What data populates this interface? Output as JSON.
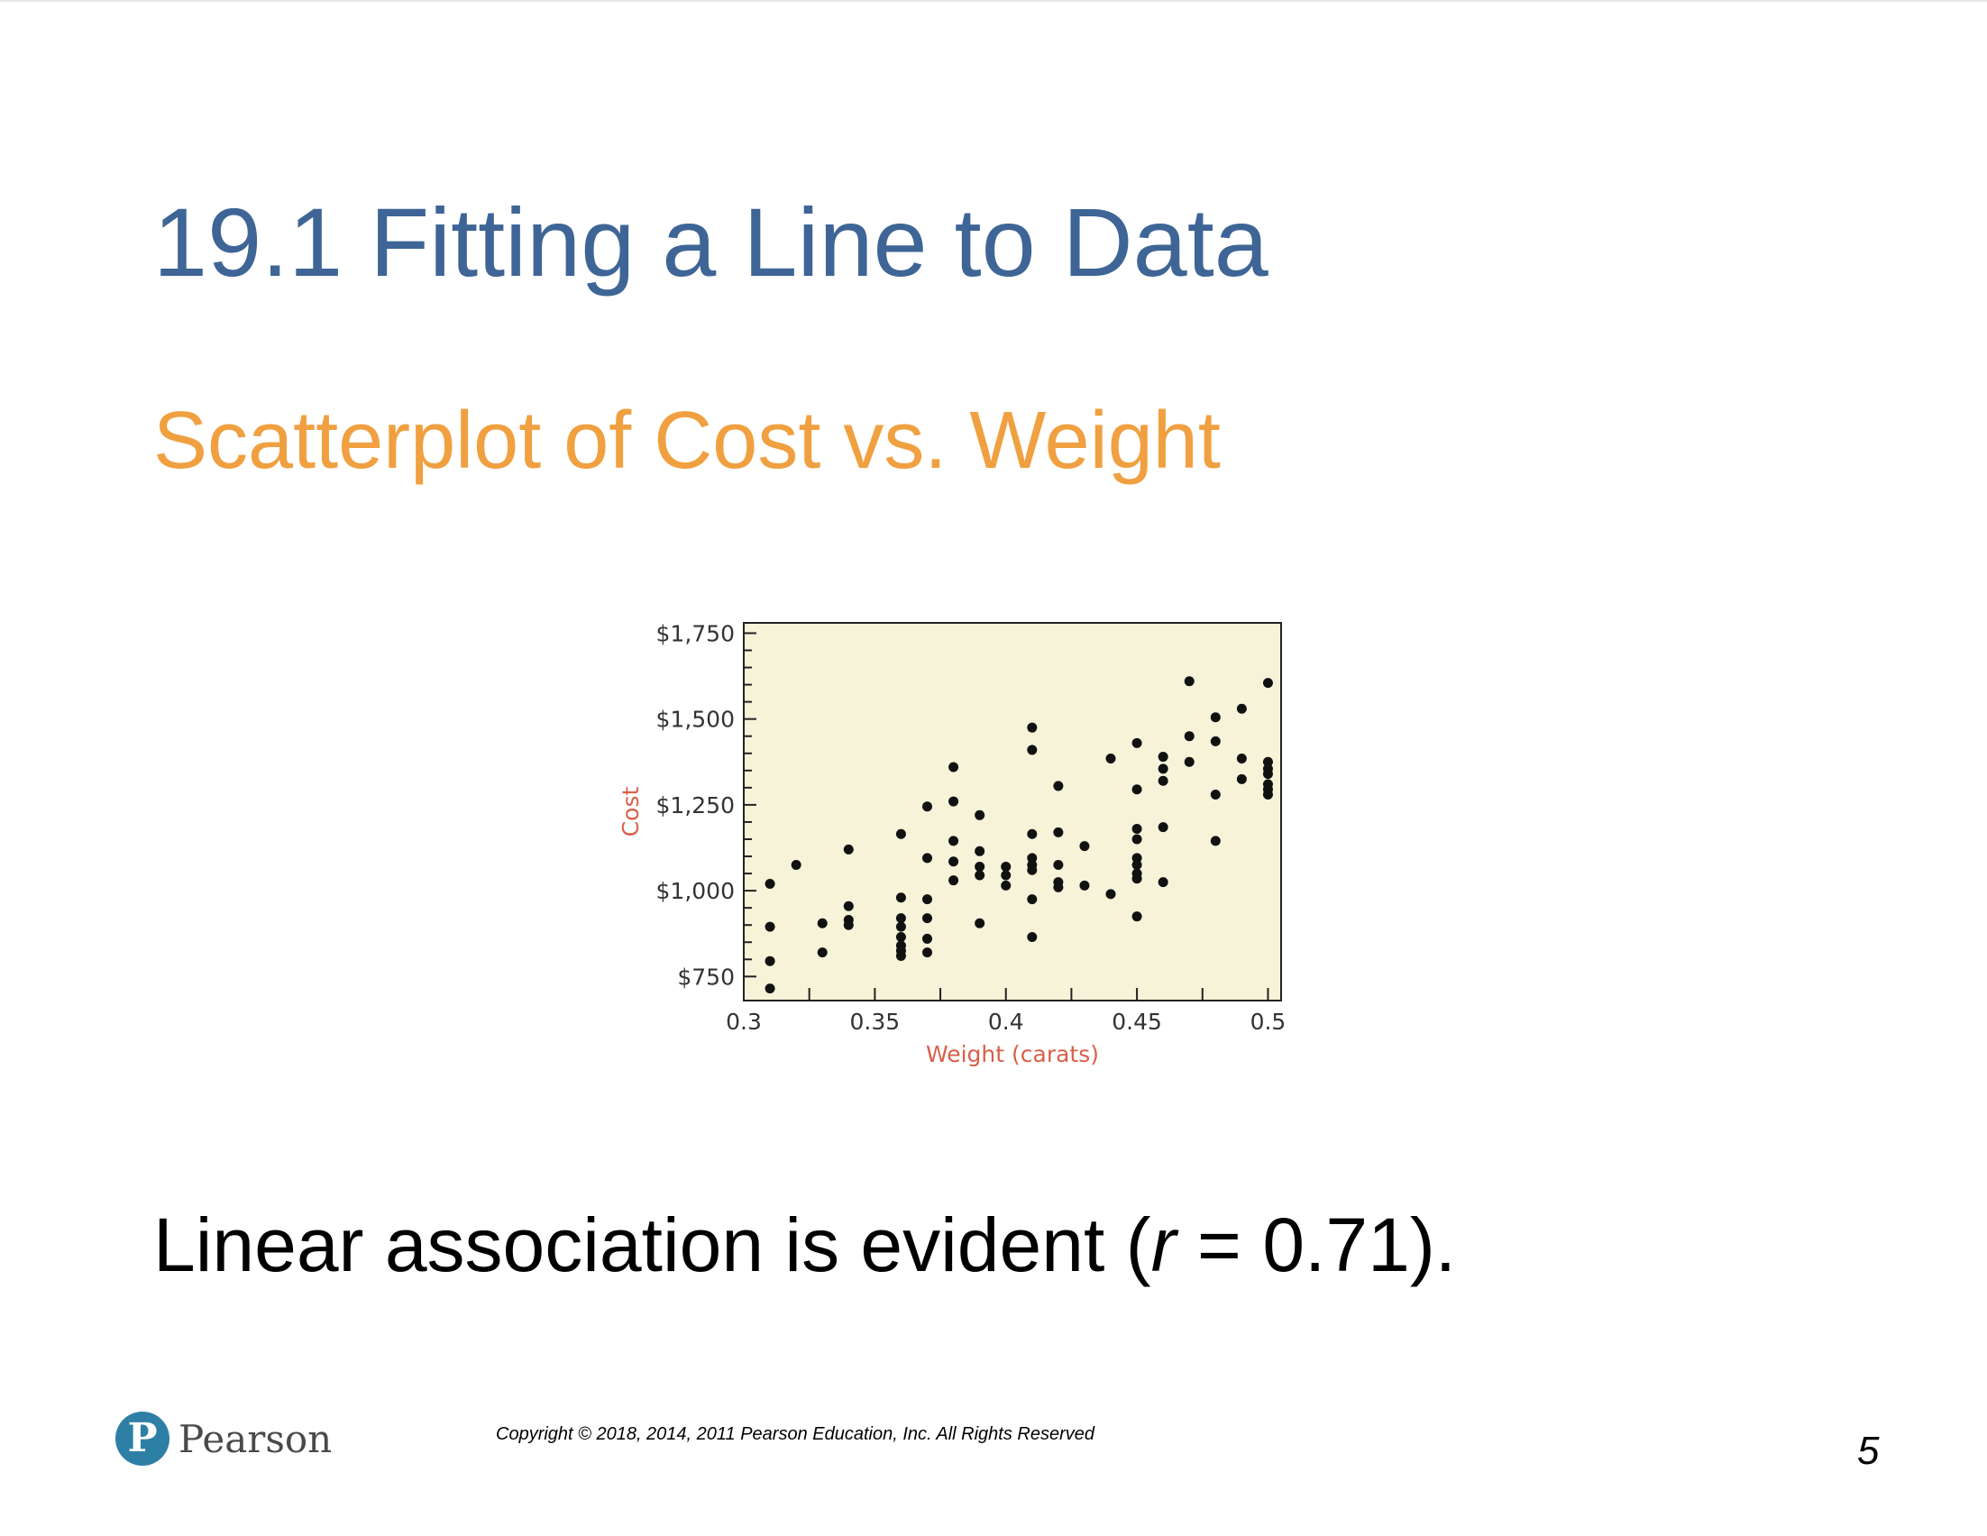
{
  "slide": {
    "title": "19.1 Fitting a Line to Data",
    "subtitle": "Scatterplot of Cost vs. Weight",
    "caption_before": "Linear association is evident (",
    "caption_var": "r",
    "caption_after": " = 0.71).",
    "copyright": "Copyright © 2018, 2014, 2011 Pearson Education, Inc. All Rights Reserved",
    "page_number": "5",
    "logo_text": "Pearson",
    "logo_letter": "P"
  },
  "colors": {
    "title": "#3e6596",
    "subtitle": "#f0a040",
    "plot_bg": "#f6f3d9",
    "axis_label": "#d9604a",
    "point": "#111111",
    "logo": "#2e7fa6"
  },
  "chart_data": {
    "type": "scatter",
    "xlabel": "Weight (carats)",
    "ylabel": "Cost",
    "xlim": [
      0.3,
      0.505
    ],
    "ylim": [
      680,
      1780
    ],
    "x_ticks": [
      0.3,
      0.35,
      0.4,
      0.45,
      0.5
    ],
    "x_tick_labels": [
      "0.3",
      "0.35",
      "0.4",
      "0.45",
      "0.5"
    ],
    "y_ticks": [
      750,
      1000,
      1250,
      1500,
      1750
    ],
    "y_tick_labels": [
      "$750",
      "$1,000",
      "$1,250",
      "$1,500",
      "$1,750"
    ],
    "grid": false,
    "points": [
      [
        0.31,
        1020
      ],
      [
        0.31,
        895
      ],
      [
        0.31,
        795
      ],
      [
        0.31,
        715
      ],
      [
        0.32,
        1075
      ],
      [
        0.33,
        905
      ],
      [
        0.33,
        820
      ],
      [
        0.34,
        1120
      ],
      [
        0.34,
        955
      ],
      [
        0.34,
        915
      ],
      [
        0.34,
        900
      ],
      [
        0.36,
        1165
      ],
      [
        0.36,
        980
      ],
      [
        0.36,
        920
      ],
      [
        0.36,
        895
      ],
      [
        0.36,
        865
      ],
      [
        0.36,
        840
      ],
      [
        0.36,
        825
      ],
      [
        0.36,
        810
      ],
      [
        0.37,
        1245
      ],
      [
        0.37,
        1095
      ],
      [
        0.37,
        975
      ],
      [
        0.37,
        920
      ],
      [
        0.37,
        860
      ],
      [
        0.37,
        820
      ],
      [
        0.38,
        1360
      ],
      [
        0.38,
        1260
      ],
      [
        0.38,
        1145
      ],
      [
        0.38,
        1085
      ],
      [
        0.38,
        1030
      ],
      [
        0.39,
        1220
      ],
      [
        0.39,
        1115
      ],
      [
        0.39,
        1070
      ],
      [
        0.39,
        1045
      ],
      [
        0.39,
        905
      ],
      [
        0.4,
        1070
      ],
      [
        0.4,
        1045
      ],
      [
        0.4,
        1015
      ],
      [
        0.41,
        1475
      ],
      [
        0.41,
        1410
      ],
      [
        0.41,
        1165
      ],
      [
        0.41,
        1095
      ],
      [
        0.41,
        1075
      ],
      [
        0.41,
        1060
      ],
      [
        0.41,
        975
      ],
      [
        0.41,
        865
      ],
      [
        0.42,
        1305
      ],
      [
        0.42,
        1170
      ],
      [
        0.42,
        1075
      ],
      [
        0.42,
        1025
      ],
      [
        0.42,
        1010
      ],
      [
        0.43,
        1130
      ],
      [
        0.43,
        1015
      ],
      [
        0.44,
        1385
      ],
      [
        0.44,
        990
      ],
      [
        0.45,
        1430
      ],
      [
        0.45,
        1295
      ],
      [
        0.45,
        1180
      ],
      [
        0.45,
        1150
      ],
      [
        0.45,
        1095
      ],
      [
        0.45,
        1075
      ],
      [
        0.45,
        1050
      ],
      [
        0.45,
        1035
      ],
      [
        0.45,
        925
      ],
      [
        0.46,
        1390
      ],
      [
        0.46,
        1355
      ],
      [
        0.46,
        1320
      ],
      [
        0.46,
        1185
      ],
      [
        0.46,
        1025
      ],
      [
        0.47,
        1610
      ],
      [
        0.47,
        1450
      ],
      [
        0.47,
        1375
      ],
      [
        0.48,
        1505
      ],
      [
        0.48,
        1435
      ],
      [
        0.48,
        1280
      ],
      [
        0.48,
        1145
      ],
      [
        0.49,
        1530
      ],
      [
        0.49,
        1385
      ],
      [
        0.49,
        1325
      ],
      [
        0.5,
        1605
      ],
      [
        0.5,
        1375
      ],
      [
        0.5,
        1355
      ],
      [
        0.5,
        1340
      ],
      [
        0.5,
        1310
      ],
      [
        0.5,
        1295
      ],
      [
        0.5,
        1280
      ]
    ]
  }
}
